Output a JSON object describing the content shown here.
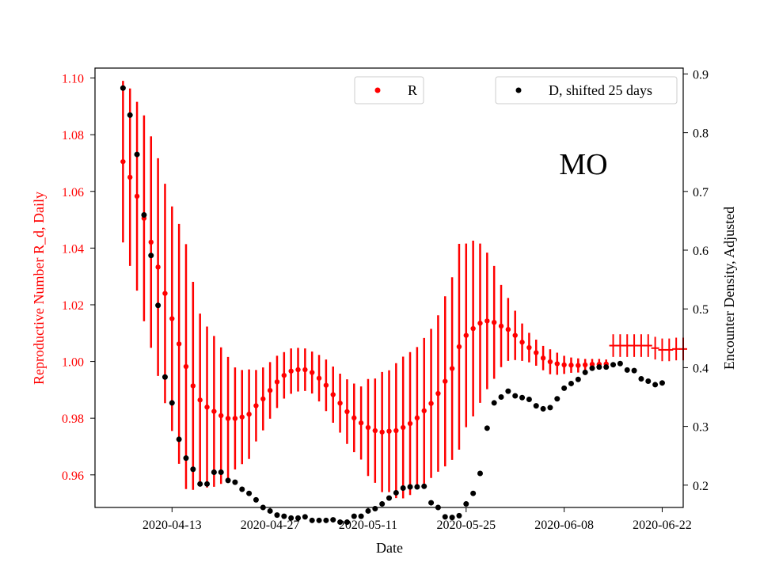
{
  "chart_data": {
    "type": "scatter",
    "annotation": "MO",
    "xlabel": "Date",
    "ylabel_left": "Reproductive Number R_d, Daily",
    "ylabel_right": "Encounter Density, Adjusted",
    "x_ticks": [
      "2020-04-13",
      "2020-04-27",
      "2020-05-11",
      "2020-05-25",
      "2020-06-08",
      "2020-06-22"
    ],
    "x_tick_days": [
      0,
      14,
      28,
      42,
      56,
      70
    ],
    "x_range_days": [
      -11,
      73
    ],
    "y_left_ticks": [
      "0.96",
      "0.98",
      "1.00",
      "1.02",
      "1.04",
      "1.06",
      "1.08",
      "1.10"
    ],
    "y_left_range": [
      0.9485,
      1.1035
    ],
    "y_right_ticks": [
      "0.2",
      "0.3",
      "0.4",
      "0.5",
      "0.6",
      "0.7",
      "0.8",
      "0.9"
    ],
    "y_right_range": [
      0.162,
      0.91
    ],
    "legend_r": {
      "label": "R",
      "position": "top-center"
    },
    "legend_d": {
      "label": "D, shifted 25 days",
      "position": "top-right"
    },
    "colors": {
      "r": "#ff0000",
      "d": "#000000",
      "left_axis_text": "#ff0000"
    },
    "series": [
      {
        "name": "R",
        "x_start_day": -7,
        "values": [
          1.0705,
          1.065,
          1.0583,
          1.0505,
          1.0421,
          1.0333,
          1.024,
          1.0151,
          1.0062,
          0.9982,
          0.9914,
          0.9864,
          0.9839,
          0.9824,
          0.9809,
          0.9799,
          0.9799,
          0.9804,
          0.9814,
          0.9844,
          0.9868,
          0.9898,
          0.9928,
          0.9951,
          0.9966,
          0.9971,
          0.9971,
          0.9961,
          0.9941,
          0.9916,
          0.9883,
          0.9853,
          0.9823,
          0.9801,
          0.9783,
          0.9767,
          0.9756,
          0.9751,
          0.9754,
          0.9756,
          0.9767,
          0.9781,
          0.9801,
          0.9826,
          0.9852,
          0.9887,
          0.993,
          0.9975,
          1.0052,
          1.0092,
          1.0116,
          1.0135,
          1.0143,
          1.0138,
          1.0125,
          1.0113,
          1.0092,
          1.0068,
          1.0049,
          1.0031,
          1.0012,
          0.9999,
          0.9992,
          0.9988,
          0.9987,
          0.9986,
          0.9988,
          0.999,
          0.999,
          0.9991
        ],
        "err": [
          0.0285,
          0.0313,
          0.0333,
          0.0363,
          0.0373,
          0.0384,
          0.0387,
          0.0396,
          0.0423,
          0.0432,
          0.0367,
          0.0305,
          0.0284,
          0.0266,
          0.0241,
          0.0217,
          0.018,
          0.0166,
          0.0158,
          0.0126,
          0.0111,
          0.01,
          0.0092,
          0.0082,
          0.008,
          0.0077,
          0.0075,
          0.0074,
          0.0082,
          0.0091,
          0.0099,
          0.0104,
          0.0114,
          0.0121,
          0.0129,
          0.0171,
          0.0184,
          0.0212,
          0.0215,
          0.0238,
          0.025,
          0.0252,
          0.025,
          0.0257,
          0.0263,
          0.0276,
          0.03,
          0.0322,
          0.0363,
          0.0324,
          0.031,
          0.0281,
          0.0241,
          0.0199,
          0.0145,
          0.0111,
          0.0087,
          0.0066,
          0.0052,
          0.0046,
          0.0043,
          0.0044,
          0.0039,
          0.0032,
          0.0027,
          0.0025,
          0.0021,
          0.0019,
          0.0019,
          0.0016
        ]
      },
      {
        "name": "R (tail estimates)",
        "x_start_day": 63,
        "values": [
          1.0056,
          1.0056,
          1.0056,
          1.0056,
          1.0056,
          1.0056,
          1.0047,
          1.0041,
          1.0041,
          1.0044,
          1.0044
        ],
        "err": [
          0.004,
          0.004,
          0.004,
          0.004,
          0.004,
          0.004,
          0.004,
          0.004,
          0.004,
          0.004,
          0.004
        ]
      },
      {
        "name": "D, shifted 25 days",
        "x_start_day": -7,
        "values": [
          0.876,
          0.83,
          0.763,
          0.66,
          0.591,
          0.506,
          0.384,
          0.34,
          0.278,
          0.246,
          0.227,
          0.202,
          0.202,
          0.222,
          0.222,
          0.208,
          0.205,
          0.193,
          0.186,
          0.175,
          0.162,
          0.156,
          0.149,
          0.147,
          0.144,
          0.144,
          0.146,
          0.14,
          0.14,
          0.14,
          0.141,
          0.137,
          0.137,
          0.147,
          0.147,
          0.156,
          0.16,
          0.168,
          0.178,
          0.187,
          0.195,
          0.197,
          0.197,
          0.198,
          0.17,
          0.162,
          0.146,
          0.145,
          0.148,
          0.168,
          0.186,
          0.22,
          0.297,
          0.34,
          0.35,
          0.36,
          0.352,
          0.349,
          0.346,
          0.335,
          0.33,
          0.332,
          0.347,
          0.365,
          0.373,
          0.38,
          0.392,
          0.399,
          0.401,
          0.401,
          0.405,
          0.407,
          0.396,
          0.395,
          0.381,
          0.377,
          0.371,
          0.374
        ]
      }
    ]
  }
}
